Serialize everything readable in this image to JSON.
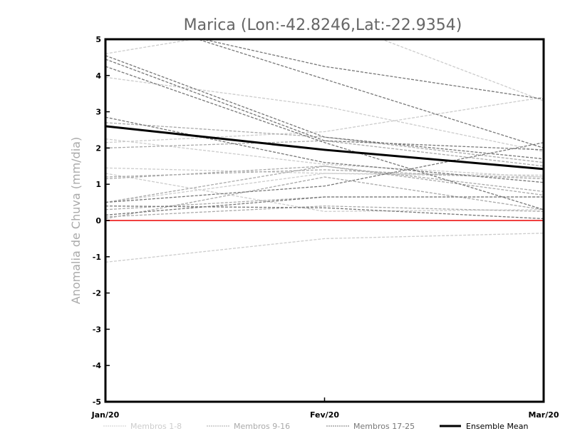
{
  "chart_data": {
    "type": "line",
    "title": "Marica (Lon:-42.8246,Lat:-22.9354)",
    "xlabel": "",
    "ylabel": "Anomalia de Chuva (mm/dia)",
    "categories": [
      "Jan/20",
      "Fev/20",
      "Mar/20"
    ],
    "ylim": [
      -5,
      5
    ],
    "yticks": [
      "-5",
      "-4",
      "-3",
      "-2",
      "-1",
      "0",
      "1",
      "2",
      "3",
      "4",
      "5"
    ],
    "grid": false,
    "reference_line": {
      "y": 0,
      "color": "#f04040"
    },
    "legend_position": "bottom",
    "groups": [
      {
        "name": "Membros 1-8",
        "color": "#cccccc",
        "series": [
          [
            4.6,
            5.6,
            3.3
          ],
          [
            3.95,
            3.15,
            1.9
          ],
          [
            2.15,
            2.45,
            3.4
          ],
          [
            2.25,
            1.55,
            1.2
          ],
          [
            1.45,
            1.3,
            1.2
          ],
          [
            1.3,
            0.25,
            0.3
          ],
          [
            -1.15,
            -0.5,
            -0.35
          ],
          [
            0.5,
            1.3,
            1.25
          ]
        ]
      },
      {
        "name": "Membros 9-16",
        "color": "#aaaaaa",
        "series": [
          [
            2.7,
            2.3,
            1.6
          ],
          [
            2.0,
            2.2,
            1.5
          ],
          [
            1.2,
            1.4,
            1.15
          ],
          [
            0.5,
            1.5,
            0.8
          ],
          [
            0.3,
            0.65,
            0.65
          ],
          [
            0.1,
            0.4,
            0.25
          ],
          [
            1.15,
            1.5,
            0.7
          ],
          [
            0.05,
            1.2,
            0.3
          ]
        ]
      },
      {
        "name": "Membros 17-25",
        "color": "#777777",
        "series": [
          [
            4.55,
            2.3,
            1.7
          ],
          [
            4.45,
            2.2,
            1.95
          ],
          [
            4.25,
            2.15,
            0.3
          ],
          [
            2.85,
            1.6,
            1.05
          ],
          [
            5.6,
            4.25,
            3.35
          ],
          [
            5.8,
            3.9,
            2.0
          ],
          [
            0.5,
            0.95,
            2.15
          ],
          [
            0.15,
            0.65,
            0.65
          ],
          [
            0.4,
            0.35,
            0.05
          ]
        ]
      }
    ],
    "ensemble_mean": {
      "name": "Ensemble Mean",
      "color": "#000000",
      "values": [
        2.6,
        1.95,
        1.42
      ]
    }
  }
}
